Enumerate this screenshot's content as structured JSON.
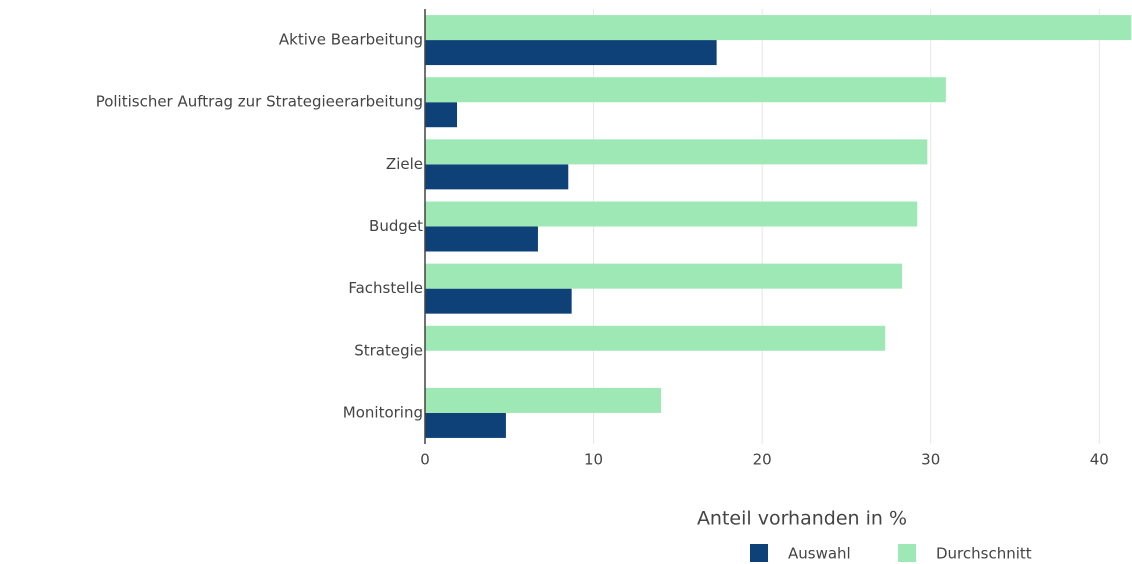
{
  "chart_data": {
    "type": "bar",
    "orientation": "horizontal",
    "categories": [
      "Aktive Bearbeitung",
      "Politischer Auftrag zur Strategieerarbeitung",
      "Ziele",
      "Budget",
      "Fachstelle",
      "Strategie",
      "Monitoring"
    ],
    "series": [
      {
        "name": "Auswahl",
        "color": "#0d4178",
        "values": [
          17.3,
          1.9,
          8.5,
          6.7,
          8.7,
          0,
          4.8
        ]
      },
      {
        "name": "Durchschnitt",
        "color": "#9ee8b5",
        "values": [
          41.9,
          30.9,
          29.8,
          29.2,
          28.3,
          27.3,
          14.0
        ]
      }
    ],
    "x_label": "Anteil vorhanden in %",
    "xlim": [
      0,
      42
    ],
    "xticks": [
      0,
      10,
      20,
      30,
      40
    ],
    "grid": true
  }
}
